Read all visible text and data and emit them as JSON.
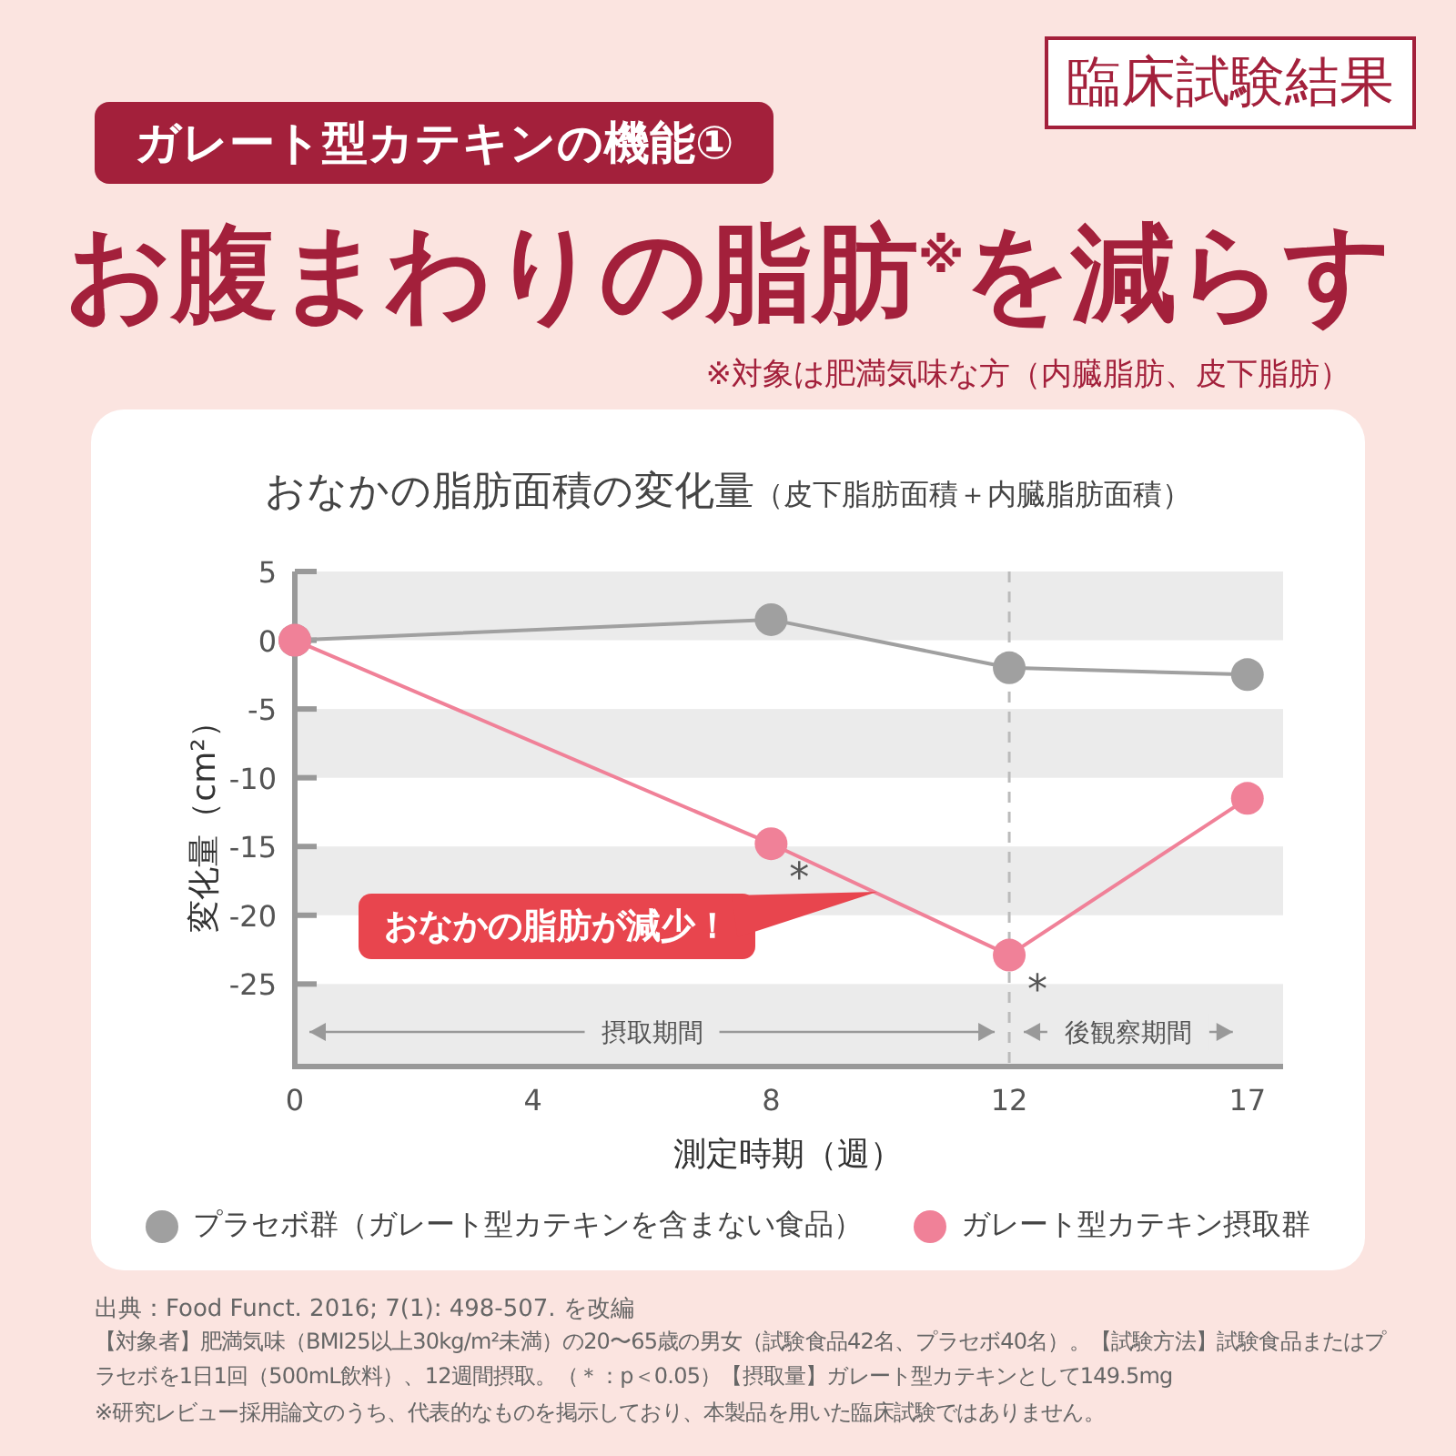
{
  "chart_data": {
    "type": "line",
    "title": "おなかの脂肪面積の変化量",
    "subtitle": "（皮下脂肪面積＋内臓脂肪面積）",
    "xlabel": "測定時期（週）",
    "ylabel": "変化量（cm²）",
    "categories": [
      "0",
      "4",
      "8",
      "12",
      "17"
    ],
    "ylim": [
      -31,
      5
    ],
    "yticks": [
      5,
      0,
      -5,
      -10,
      -15,
      -20,
      -25
    ],
    "series": [
      {
        "name": "プラセボ群（ガレート型カテキンを含まない食品）",
        "color": "#a0a0a0",
        "x": [
          "0",
          "8",
          "12",
          "17"
        ],
        "values": [
          0,
          1.5,
          -2,
          -2.5
        ]
      },
      {
        "name": "ガレート型カテキン摂取群",
        "color": "#f08198",
        "x": [
          "0",
          "8",
          "12",
          "17"
        ],
        "values": [
          0,
          -14.8,
          -22.9,
          -11.5
        ]
      }
    ],
    "marker": "circle",
    "line_style": "solid",
    "grid": false,
    "legend": "bottom",
    "bands": [
      {
        "axis": "y",
        "from": 5,
        "to": 0,
        "color": "#ebebeb"
      },
      {
        "axis": "y",
        "from": -5,
        "to": -10,
        "color": "#ebebeb"
      },
      {
        "axis": "y",
        "from": -15,
        "to": -20,
        "color": "#ebebeb"
      },
      {
        "axis": "y",
        "from": -25,
        "to": -31,
        "color": "#ebebeb"
      }
    ],
    "ref_lines": [
      {
        "axis": "x",
        "value": "12",
        "color": "#bbbbbb",
        "line_style": "dashed"
      }
    ],
    "annotations": [
      "臨床試験結果",
      "ガレート型カテキンの機能①",
      "お腹まわりの脂肪$^{※}$を減らす",
      "※対象は肥満気味な方（内臓脂肪、皮下脂肪）",
      "おなかの脂肪が減少！",
      "出典：Food Funct. 2016; 7(1): 498-507. を改編",
      "【対象者】肥満気味（BMI25以上30kg/m²未満）の20〜65歳の男女（試験食品42名、プラセボ40名）。【試験方法】試験食品またはプラセボを1日1回（500mL飲料）、12週間摂取。（＊：p＜0.05）【摂取量】ガレート型カテキンとして149.5mg",
      "※研究レビュー採用論文のうち、代表的なものを掲示しており、本製品を用いた臨床試験ではありません。",
      "摂取期間",
      "後観察期間",
      {
        "text": "*",
        "x": "8",
        "y": -14.8
      },
      {
        "text": "*",
        "x": "12",
        "y": -22.9
      }
    ]
  }
}
